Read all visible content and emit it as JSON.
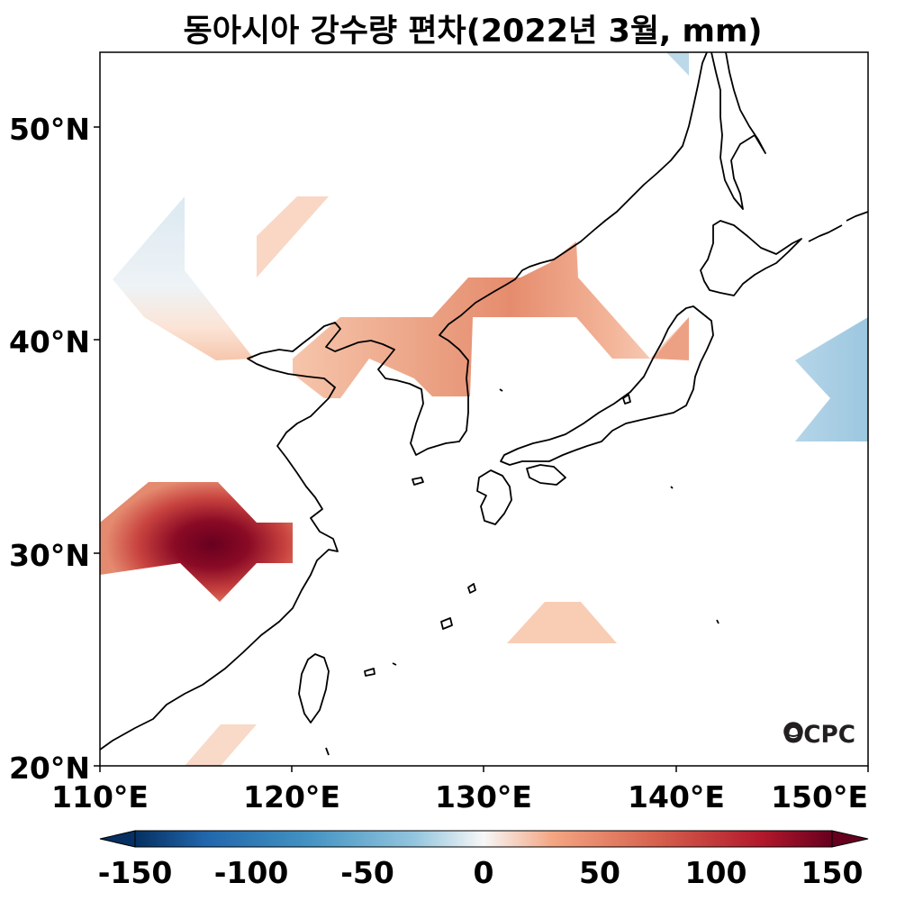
{
  "title": "동아시아 강수량 편차(2022년 3월, mm)",
  "map": {
    "lon_range": [
      110,
      150
    ],
    "lat_range": [
      20,
      53.5
    ],
    "x_ticks": [
      "110°E",
      "120°E",
      "130°E",
      "140°E",
      "150°E"
    ],
    "y_ticks": [
      "20°N",
      "30°N",
      "40°N",
      "50°N"
    ]
  },
  "colorbar": {
    "ticks": [
      "-150",
      "-100",
      "-50",
      "0",
      "50",
      "100",
      "150"
    ],
    "range": [
      -150,
      150
    ],
    "colormap": "RdBu_r",
    "colors": {
      "neg_strong": "#053061",
      "neg_mid": "#2166ac",
      "neg_light": "#92c5de",
      "neutral": "#f7f7f7",
      "pos_light": "#f4a582",
      "pos_mid": "#d6604d",
      "pos_strong": "#67001f"
    }
  },
  "logo": "OCPC"
}
